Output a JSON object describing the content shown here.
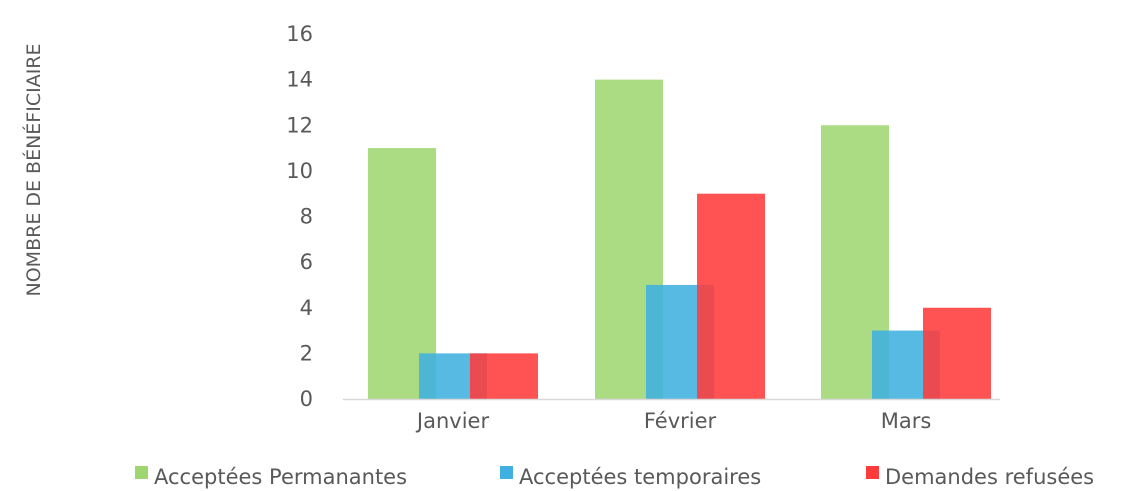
{
  "chart_data": {
    "type": "bar",
    "title": "",
    "xlabel": "",
    "ylabel": "NOMBRE DE BÉNÉFICIAIRE",
    "ylim": [
      0,
      16
    ],
    "y_ticks": [
      0,
      2,
      4,
      6,
      8,
      10,
      12,
      14,
      16
    ],
    "grid": false,
    "legend_position": "bottom",
    "categories": [
      "Janvier",
      "Février",
      "Mars"
    ],
    "series": [
      {
        "name": "Acceptées Permanantes",
        "color": "#9fd672",
        "values": [
          11,
          14,
          12
        ]
      },
      {
        "name": "Acceptées temporaires",
        "color": "#3fb0df",
        "values": [
          2,
          5,
          3
        ]
      },
      {
        "name": "Demandes refusées",
        "color": "#ff3b3b",
        "values": [
          2,
          9,
          4
        ]
      }
    ]
  }
}
